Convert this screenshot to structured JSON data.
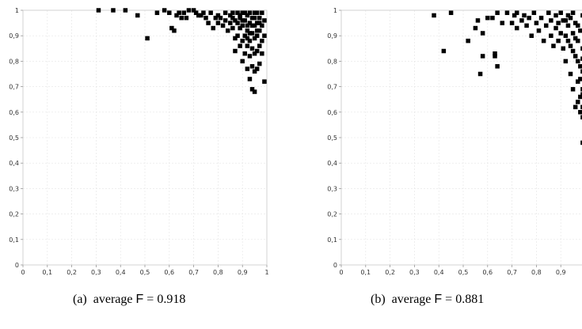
{
  "captions": [
    {
      "label": "(a)",
      "text": "average",
      "metric": "F",
      "eq": "=",
      "value": "0.918"
    },
    {
      "label": "(b)",
      "text": "average",
      "metric": "F",
      "eq": "=",
      "value": "0.881"
    }
  ],
  "chart_data": [
    {
      "type": "scatter",
      "title": "",
      "xlabel": "",
      "ylabel": "",
      "xlim": [
        0,
        1
      ],
      "ylim": [
        0,
        1
      ],
      "xticks": [
        "0",
        "0,1",
        "0,2",
        "0,3",
        "0,4",
        "0,5",
        "0,6",
        "0,7",
        "0,8",
        "0,9",
        "1"
      ],
      "yticks": [
        "0",
        "0,1",
        "0,2",
        "0,3",
        "0,4",
        "0,5",
        "0,6",
        "0,7",
        "0,8",
        "0,9",
        "1"
      ],
      "grid": true,
      "marker": "square",
      "color": "#000000",
      "points": [
        [
          0.31,
          1.0
        ],
        [
          0.37,
          1.0
        ],
        [
          0.42,
          1.0
        ],
        [
          0.47,
          0.98
        ],
        [
          0.51,
          0.89
        ],
        [
          0.55,
          0.99
        ],
        [
          0.58,
          1.0
        ],
        [
          0.6,
          0.99
        ],
        [
          0.61,
          0.93
        ],
        [
          0.62,
          0.92
        ],
        [
          0.63,
          0.98
        ],
        [
          0.64,
          0.99
        ],
        [
          0.65,
          0.97
        ],
        [
          0.66,
          0.99
        ],
        [
          0.67,
          0.97
        ],
        [
          0.68,
          1.0
        ],
        [
          0.7,
          1.0
        ],
        [
          0.71,
          0.99
        ],
        [
          0.72,
          0.98
        ],
        [
          0.73,
          0.98
        ],
        [
          0.74,
          0.99
        ],
        [
          0.75,
          0.97
        ],
        [
          0.76,
          0.95
        ],
        [
          0.77,
          0.99
        ],
        [
          0.78,
          0.93
        ],
        [
          0.79,
          0.97
        ],
        [
          0.8,
          0.98
        ],
        [
          0.8,
          0.95
        ],
        [
          0.81,
          0.97
        ],
        [
          0.82,
          0.94
        ],
        [
          0.83,
          0.99
        ],
        [
          0.83,
          0.96
        ],
        [
          0.84,
          0.92
        ],
        [
          0.85,
          0.98
        ],
        [
          0.85,
          0.95
        ],
        [
          0.86,
          0.93
        ],
        [
          0.86,
          0.97
        ],
        [
          0.87,
          0.89
        ],
        [
          0.87,
          0.84
        ],
        [
          0.88,
          0.9
        ],
        [
          0.88,
          0.95
        ],
        [
          0.88,
          0.99
        ],
        [
          0.89,
          0.86
        ],
        [
          0.89,
          0.93
        ],
        [
          0.89,
          0.97
        ],
        [
          0.9,
          0.8
        ],
        [
          0.9,
          0.88
        ],
        [
          0.9,
          0.94
        ],
        [
          0.9,
          0.99
        ],
        [
          0.91,
          0.83
        ],
        [
          0.91,
          0.9
        ],
        [
          0.91,
          0.96
        ],
        [
          0.92,
          0.77
        ],
        [
          0.92,
          0.86
        ],
        [
          0.92,
          0.92
        ],
        [
          0.92,
          0.98
        ],
        [
          0.93,
          0.73
        ],
        [
          0.93,
          0.82
        ],
        [
          0.93,
          0.88
        ],
        [
          0.93,
          0.95
        ],
        [
          0.93,
          0.99
        ],
        [
          0.94,
          0.69
        ],
        [
          0.94,
          0.78
        ],
        [
          0.94,
          0.85
        ],
        [
          0.94,
          0.91
        ],
        [
          0.94,
          0.97
        ],
        [
          0.95,
          0.68
        ],
        [
          0.95,
          0.76
        ],
        [
          0.95,
          0.83
        ],
        [
          0.95,
          0.89
        ],
        [
          0.95,
          0.94
        ],
        [
          0.95,
          0.99
        ],
        [
          0.96,
          0.77
        ],
        [
          0.96,
          0.84
        ],
        [
          0.96,
          0.9
        ],
        [
          0.96,
          0.95
        ],
        [
          0.96,
          0.99
        ],
        [
          0.97,
          0.79
        ],
        [
          0.97,
          0.86
        ],
        [
          0.97,
          0.92
        ],
        [
          0.97,
          0.97
        ],
        [
          0.98,
          0.83
        ],
        [
          0.98,
          0.88
        ],
        [
          0.98,
          0.94
        ],
        [
          0.98,
          0.99
        ],
        [
          0.99,
          0.72
        ],
        [
          0.99,
          0.9
        ],
        [
          0.99,
          0.96
        ],
        [
          0.91,
          0.99
        ],
        [
          0.92,
          0.94
        ],
        [
          0.93,
          0.91
        ],
        [
          0.94,
          0.94
        ],
        [
          0.95,
          0.97
        ],
        [
          0.96,
          0.92
        ],
        [
          0.97,
          0.95
        ],
        [
          0.86,
          0.99
        ],
        [
          0.87,
          0.96
        ],
        [
          0.89,
          0.98
        ],
        [
          0.9,
          0.96
        ],
        [
          0.92,
          0.89
        ]
      ]
    },
    {
      "type": "scatter",
      "title": "",
      "xlabel": "",
      "ylabel": "",
      "xlim": [
        0,
        1
      ],
      "ylim": [
        0,
        1
      ],
      "xticks": [
        "0",
        "0,1",
        "0,2",
        "0,3",
        "0,4",
        "0,5",
        "0,6",
        "0,7",
        "0,8",
        "0,9"
      ],
      "yticks": [
        "0",
        "0,1",
        "0,2",
        "0,3",
        "0,4",
        "0,5",
        "0,6",
        "0,7",
        "0,8",
        "0,9",
        "1"
      ],
      "grid": true,
      "marker": "square",
      "color": "#000000",
      "points": [
        [
          0.38,
          0.98
        ],
        [
          0.42,
          0.84
        ],
        [
          0.45,
          0.99
        ],
        [
          0.52,
          0.88
        ],
        [
          0.55,
          0.93
        ],
        [
          0.56,
          0.96
        ],
        [
          0.57,
          0.75
        ],
        [
          0.58,
          0.82
        ],
        [
          0.58,
          0.91
        ],
        [
          0.6,
          0.97
        ],
        [
          0.62,
          0.97
        ],
        [
          0.63,
          0.82
        ],
        [
          0.63,
          0.83
        ],
        [
          0.64,
          0.78
        ],
        [
          0.64,
          0.99
        ],
        [
          0.66,
          0.95
        ],
        [
          0.68,
          0.99
        ],
        [
          0.7,
          0.95
        ],
        [
          0.71,
          0.98
        ],
        [
          0.72,
          0.93
        ],
        [
          0.72,
          0.99
        ],
        [
          0.74,
          0.96
        ],
        [
          0.75,
          0.98
        ],
        [
          0.76,
          0.94
        ],
        [
          0.77,
          0.97
        ],
        [
          0.78,
          0.9
        ],
        [
          0.79,
          0.99
        ],
        [
          0.8,
          0.95
        ],
        [
          0.81,
          0.92
        ],
        [
          0.82,
          0.97
        ],
        [
          0.83,
          0.88
        ],
        [
          0.84,
          0.94
        ],
        [
          0.85,
          0.99
        ],
        [
          0.86,
          0.9
        ],
        [
          0.86,
          0.96
        ],
        [
          0.87,
          0.86
        ],
        [
          0.88,
          0.93
        ],
        [
          0.88,
          0.98
        ],
        [
          0.89,
          0.88
        ],
        [
          0.89,
          0.95
        ],
        [
          0.9,
          0.99
        ],
        [
          0.9,
          0.91
        ],
        [
          0.91,
          0.85
        ],
        [
          0.91,
          0.96
        ],
        [
          0.92,
          0.8
        ],
        [
          0.92,
          0.9
        ],
        [
          0.93,
          0.94
        ],
        [
          0.93,
          0.98
        ],
        [
          0.94,
          0.75
        ],
        [
          0.94,
          0.86
        ],
        [
          0.95,
          0.91
        ],
        [
          0.95,
          0.69
        ],
        [
          0.96,
          0.82
        ],
        [
          0.96,
          0.95
        ],
        [
          0.97,
          0.72
        ],
        [
          0.97,
          0.88
        ],
        [
          0.97,
          0.64
        ],
        [
          0.98,
          0.78
        ],
        [
          0.98,
          0.92
        ],
        [
          0.98,
          0.6
        ],
        [
          0.99,
          0.67
        ],
        [
          0.99,
          0.85
        ],
        [
          0.99,
          0.58
        ],
        [
          0.99,
          0.98
        ],
        [
          0.94,
          0.97
        ],
        [
          0.95,
          0.99
        ],
        [
          0.96,
          0.89
        ],
        [
          0.97,
          0.94
        ],
        [
          0.98,
          0.73
        ],
        [
          0.99,
          0.76
        ],
        [
          0.93,
          0.88
        ],
        [
          0.92,
          0.96
        ],
        [
          0.96,
          0.62
        ],
        [
          0.97,
          0.8
        ],
        [
          0.98,
          0.66
        ],
        [
          0.99,
          0.62
        ],
        [
          0.99,
          0.69
        ],
        [
          0.99,
          0.81
        ],
        [
          0.99,
          0.48
        ],
        [
          0.95,
          0.84
        ]
      ]
    }
  ]
}
